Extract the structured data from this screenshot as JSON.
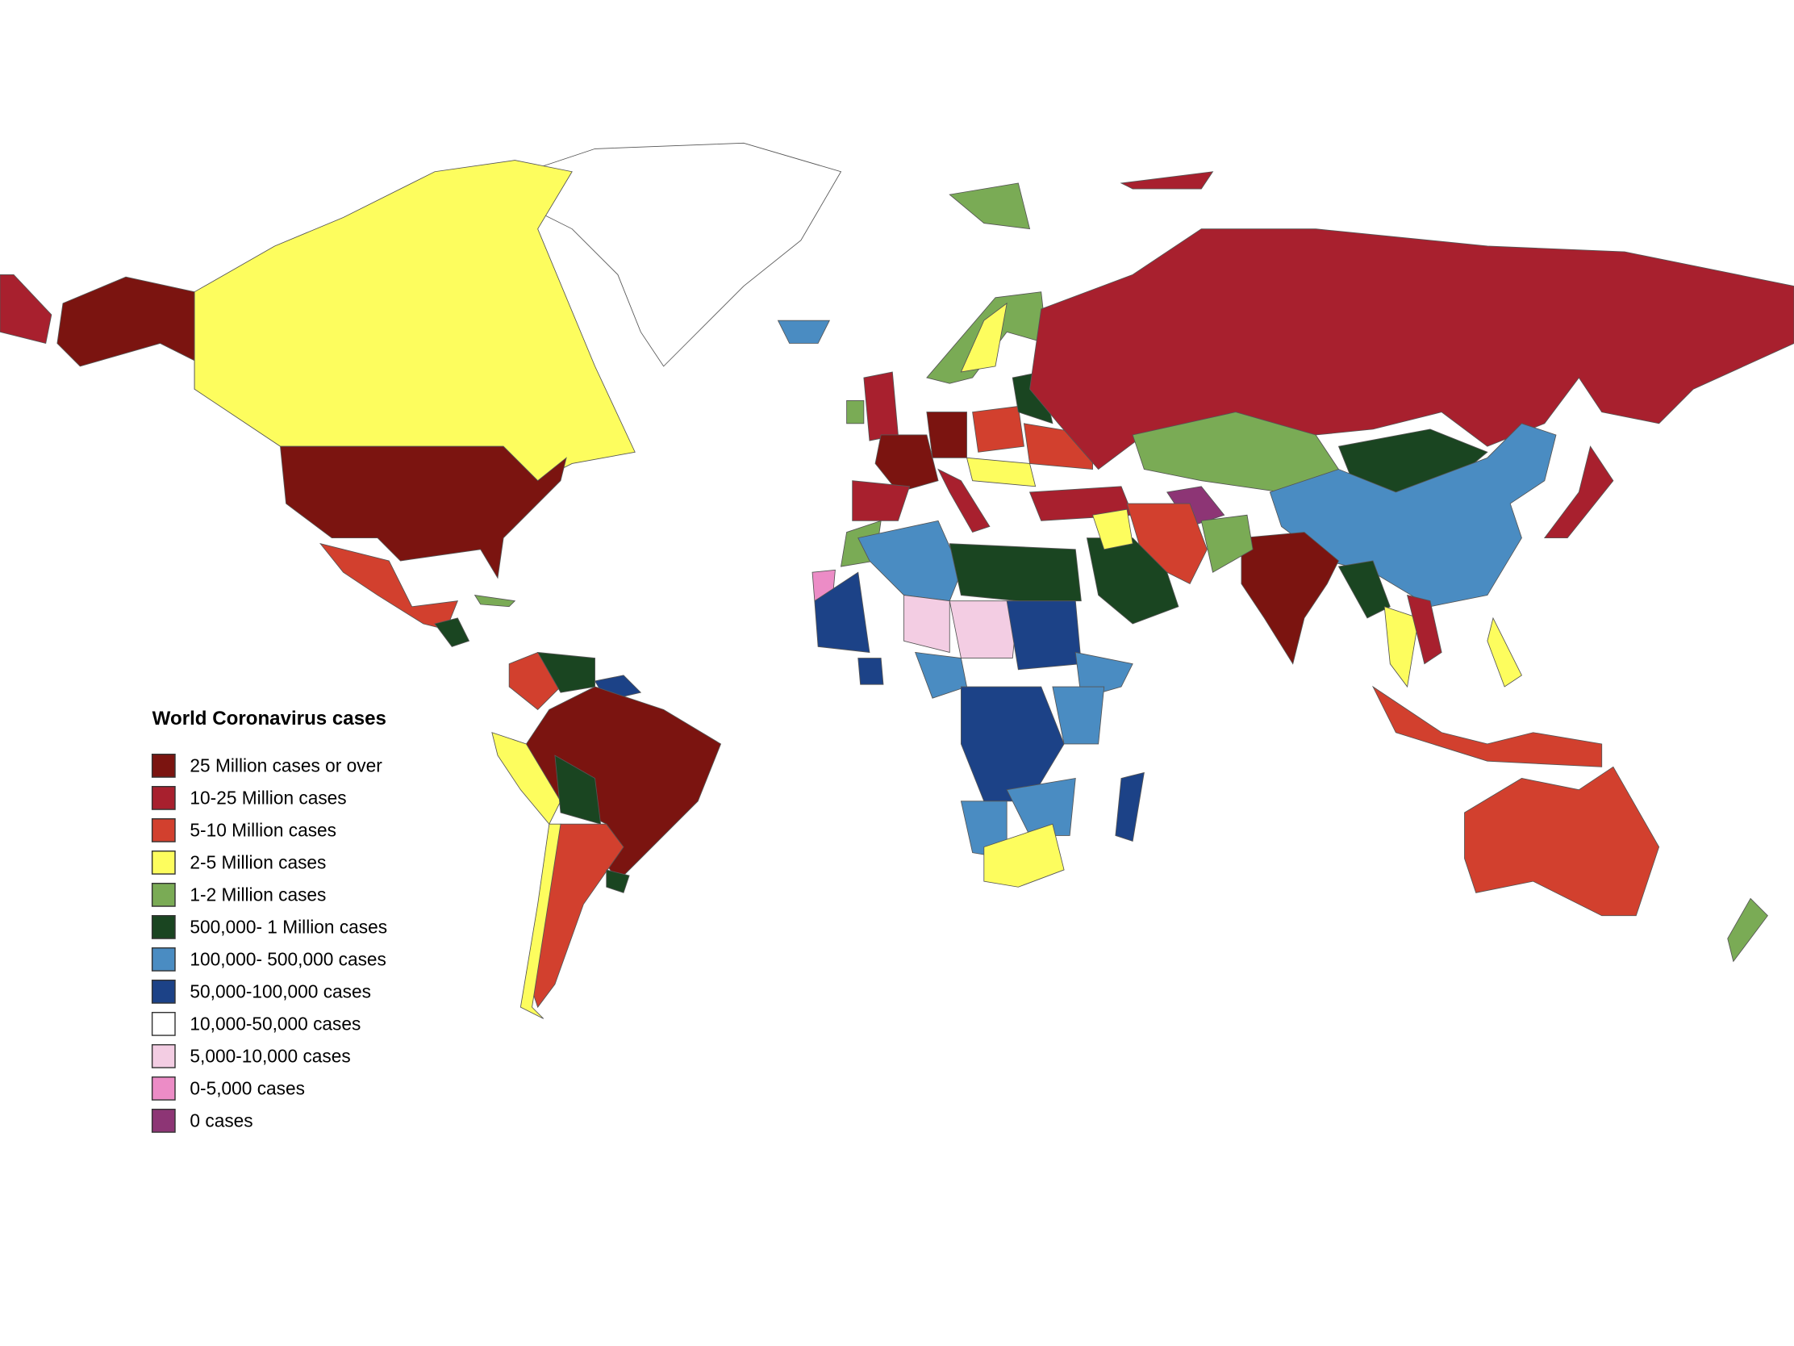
{
  "legend": {
    "title": "World Coronavirus cases",
    "items": [
      {
        "label": "25 Million cases or over",
        "color": "#7b1410"
      },
      {
        "label": "10-25 Million cases",
        "color": "#a8202e"
      },
      {
        "label": "5-10 Million cases",
        "color": "#d2402e"
      },
      {
        "label": "2-5 Million cases",
        "color": "#fdfd5e"
      },
      {
        "label": "1-2 Million cases",
        "color": "#7aab55"
      },
      {
        "label": "500,000- 1 Million cases",
        "color": "#1a4521"
      },
      {
        "label": "100,000- 500,000 cases",
        "color": "#4a8cc2"
      },
      {
        "label": "50,000-100,000 cases",
        "color": "#1c4287"
      },
      {
        "label": "10,000-50,000 cases",
        "color": "#ffffff"
      },
      {
        "label": "5,000-10,000 cases",
        "color": "#f3cde3"
      },
      {
        "label": "0-5,000 cases",
        "color": "#ec8cc6"
      },
      {
        "label": "0 cases",
        "color": "#8d3575"
      }
    ]
  }
}
